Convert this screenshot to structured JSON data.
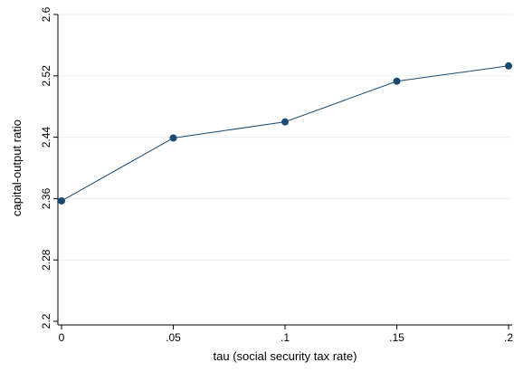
{
  "chart_data": {
    "type": "line",
    "title": "",
    "xlabel": "tau (social security tax rate)",
    "ylabel": "capital-output ratio",
    "x": [
      0,
      0.05,
      0.1,
      0.15,
      0.2
    ],
    "x_tick_values": [
      0,
      0.05,
      0.1,
      0.15,
      0.2
    ],
    "x_tick_labels": [
      "0",
      ".05",
      ".1",
      ".15",
      ".2"
    ],
    "y_tick_values": [
      2.2,
      2.28,
      2.36,
      2.44,
      2.52,
      2.6
    ],
    "y_tick_labels": [
      "2.2",
      "2.28",
      "2.36",
      "2.44",
      "2.52",
      "2.6"
    ],
    "xlim": [
      0,
      0.2
    ],
    "ylim": [
      2.2,
      2.6
    ],
    "grid": true,
    "legend": "none",
    "series": [
      {
        "values": [
          2.357,
          2.439,
          2.46,
          2.513,
          2.533
        ],
        "color": "#1a4a72"
      }
    ]
  }
}
